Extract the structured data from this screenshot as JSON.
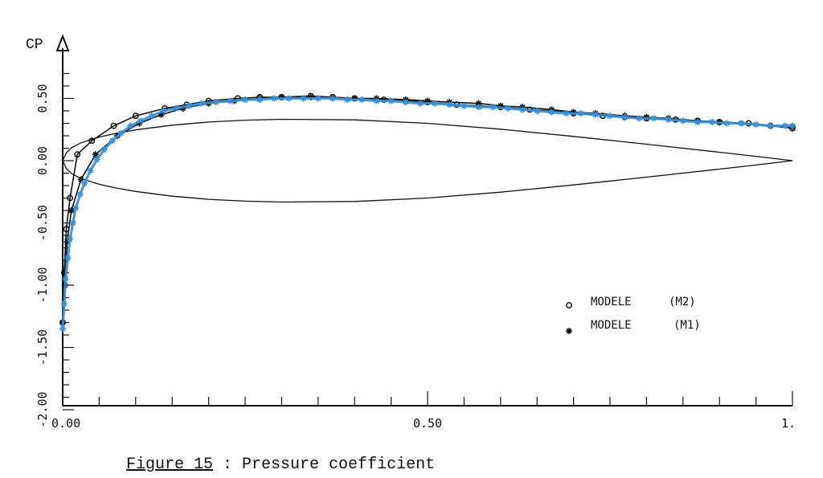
{
  "caption": {
    "figure_ref": "Figure 15",
    "text": " : Pressure coefficient"
  },
  "chart_data": {
    "type": "line",
    "title": "",
    "ylabel": "CP",
    "xlabel": "",
    "xlim": [
      0,
      1
    ],
    "ylim": [
      -2.0,
      0.78
    ],
    "x_ticks": [
      "0.00",
      "0.50",
      "1."
    ],
    "y_ticks": [
      "0.50",
      "0.00",
      "-0.50",
      "-1.00",
      "-1.50",
      "-2.00"
    ],
    "y_tick_values": [
      0.5,
      0.0,
      -0.5,
      -1.0,
      -1.5,
      -2.0
    ],
    "grid": false,
    "legend_position": "right",
    "series": [
      {
        "name": "MODELE (M2)",
        "marker": "circle",
        "color": "#111111",
        "x": [
          0.0,
          0.002,
          0.005,
          0.01,
          0.02,
          0.04,
          0.07,
          0.1,
          0.14,
          0.17,
          0.2,
          0.24,
          0.27,
          0.3,
          0.34,
          0.37,
          0.4,
          0.44,
          0.47,
          0.5,
          0.54,
          0.57,
          0.6,
          0.64,
          0.67,
          0.7,
          0.74,
          0.77,
          0.8,
          0.84,
          0.87,
          0.9,
          0.94,
          0.97,
          1.0
        ],
        "y": [
          -1.3,
          -0.9,
          -0.55,
          -0.3,
          0.05,
          0.16,
          0.28,
          0.36,
          0.42,
          0.45,
          0.48,
          0.5,
          0.51,
          0.51,
          0.52,
          0.51,
          0.5,
          0.49,
          0.48,
          0.47,
          0.45,
          0.44,
          0.43,
          0.41,
          0.4,
          0.38,
          0.36,
          0.35,
          0.34,
          0.33,
          0.32,
          0.31,
          0.3,
          0.28,
          0.26
        ]
      },
      {
        "name": "MODELE (M1)",
        "marker": "asterisk",
        "color": "#111111",
        "x": [
          0.0,
          0.003,
          0.006,
          0.012,
          0.025,
          0.045,
          0.075,
          0.105,
          0.135,
          0.165,
          0.2,
          0.235,
          0.27,
          0.3,
          0.34,
          0.37,
          0.4,
          0.43,
          0.47,
          0.5,
          0.53,
          0.57,
          0.6,
          0.63,
          0.67,
          0.7,
          0.73,
          0.77,
          0.8,
          0.83,
          0.87,
          0.9,
          0.93,
          0.97,
          1.0
        ],
        "y": [
          -1.3,
          -1.0,
          -0.65,
          -0.4,
          -0.15,
          0.05,
          0.2,
          0.3,
          0.37,
          0.42,
          0.46,
          0.48,
          0.5,
          0.51,
          0.51,
          0.51,
          0.5,
          0.5,
          0.49,
          0.48,
          0.47,
          0.46,
          0.44,
          0.43,
          0.41,
          0.39,
          0.38,
          0.36,
          0.35,
          0.34,
          0.32,
          0.31,
          0.3,
          0.28,
          0.27
        ]
      },
      {
        "name": "",
        "marker": "asterisk",
        "color": "#3a8fd6",
        "x": [
          0.0,
          0.002,
          0.004,
          0.007,
          0.01,
          0.014,
          0.018,
          0.024,
          0.03,
          0.038,
          0.047,
          0.057,
          0.068,
          0.08,
          0.093,
          0.107,
          0.122,
          0.138,
          0.155,
          0.173,
          0.19,
          0.21,
          0.23,
          0.25,
          0.27,
          0.29,
          0.31,
          0.33,
          0.35,
          0.37,
          0.39,
          0.41,
          0.43,
          0.45,
          0.47,
          0.49,
          0.51,
          0.53,
          0.55,
          0.57,
          0.59,
          0.61,
          0.63,
          0.65,
          0.67,
          0.69,
          0.71,
          0.73,
          0.75,
          0.77,
          0.79,
          0.81,
          0.83,
          0.85,
          0.87,
          0.89,
          0.91,
          0.93,
          0.95,
          0.97,
          0.99,
          1.0
        ],
        "y": [
          -1.35,
          -1.15,
          -0.95,
          -0.78,
          -0.63,
          -0.5,
          -0.38,
          -0.27,
          -0.18,
          -0.08,
          0.01,
          0.09,
          0.16,
          0.22,
          0.28,
          0.32,
          0.36,
          0.4,
          0.42,
          0.44,
          0.46,
          0.47,
          0.48,
          0.49,
          0.49,
          0.5,
          0.5,
          0.5,
          0.5,
          0.5,
          0.49,
          0.49,
          0.48,
          0.48,
          0.47,
          0.46,
          0.46,
          0.45,
          0.44,
          0.43,
          0.43,
          0.42,
          0.41,
          0.4,
          0.39,
          0.38,
          0.38,
          0.37,
          0.36,
          0.35,
          0.34,
          0.34,
          0.33,
          0.32,
          0.31,
          0.31,
          0.3,
          0.3,
          0.29,
          0.28,
          0.28,
          0.28
        ]
      }
    ],
    "airfoil_profile": {
      "x": [
        0.0,
        0.005,
        0.0125,
        0.025,
        0.05,
        0.075,
        0.1,
        0.15,
        0.2,
        0.25,
        0.3,
        0.4,
        0.5,
        0.6,
        0.7,
        0.8,
        0.9,
        0.95,
        1.0
      ],
      "upper": [
        0.0,
        0.062,
        0.105,
        0.143,
        0.19,
        0.222,
        0.247,
        0.285,
        0.31,
        0.325,
        0.332,
        0.328,
        0.3,
        0.253,
        0.195,
        0.132,
        0.068,
        0.035,
        0.0
      ],
      "lower": [
        0.0,
        -0.062,
        -0.105,
        -0.143,
        -0.19,
        -0.222,
        -0.247,
        -0.285,
        -0.31,
        -0.325,
        -0.332,
        -0.328,
        -0.3,
        -0.253,
        -0.195,
        -0.132,
        -0.068,
        -0.035,
        0.0
      ]
    },
    "legend": [
      {
        "marker": "circle",
        "label": "MODELE",
        "tag": "(M2)"
      },
      {
        "marker": "asterisk",
        "label": "MODELE",
        "tag": "(M1)"
      }
    ]
  }
}
